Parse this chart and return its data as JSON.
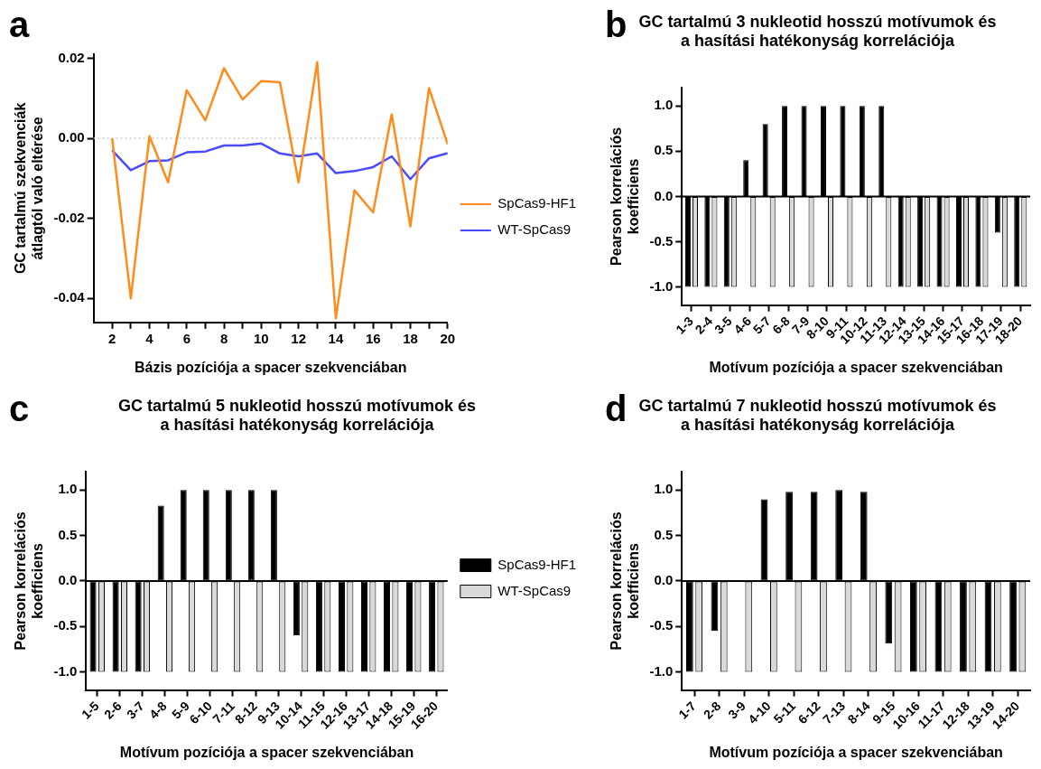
{
  "chart_data": [
    {
      "type": "line",
      "annotations": [
        "a"
      ],
      "xlabel": "Bázis pozíciója a spacer szekvenciában",
      "ylabel": "GC tartalmú szekvenciák átlagtól való eltérése",
      "x": [
        2,
        3,
        4,
        5,
        6,
        7,
        8,
        9,
        10,
        11,
        12,
        13,
        14,
        15,
        16,
        17,
        18,
        19,
        20
      ],
      "series": [
        {
          "name": "SpCas9-HF1",
          "color": "#ff8c1a",
          "values": [
            0.0,
            -0.04,
            0.0005,
            -0.011,
            0.012,
            0.0045,
            0.0175,
            0.0097,
            0.0143,
            0.014,
            -0.011,
            0.019,
            -0.045,
            -0.013,
            -0.0185,
            0.006,
            -0.022,
            0.0125,
            -0.0015
          ]
        },
        {
          "name": "WT-SpCas9",
          "color": "#4a4aff",
          "values": [
            -0.003,
            -0.008,
            -0.0057,
            -0.0055,
            -0.0035,
            -0.0033,
            -0.0018,
            -0.0018,
            -0.0013,
            -0.0038,
            -0.0045,
            -0.0038,
            -0.0087,
            -0.0082,
            -0.0072,
            -0.0045,
            -0.0102,
            -0.005,
            -0.0037
          ]
        }
      ],
      "xlim": [
        1,
        20
      ],
      "xticks": [
        2,
        {
          "value": 3,
          "label": null
        },
        4,
        {
          "value": 5,
          "label": null
        },
        6,
        {
          "value": 7,
          "label": null
        },
        8,
        {
          "value": 9,
          "label": null
        },
        10,
        {
          "value": 11,
          "label": null
        },
        12,
        {
          "value": 13,
          "label": null
        },
        14,
        {
          "value": 15,
          "label": null
        },
        16,
        {
          "value": 17,
          "label": null
        },
        18,
        {
          "value": 19,
          "label": null
        },
        20
      ],
      "ylim": [
        -0.046,
        0.021
      ],
      "yticks": [
        {
          "value": -0.04,
          "label": "-0.04"
        },
        {
          "value": -0.02,
          "label": "-0.02"
        },
        {
          "value": 0,
          "label": "0.00"
        },
        {
          "value": 0.02,
          "label": "0.02"
        }
      ],
      "ref_lines": [
        {
          "axis": "y",
          "value": 0,
          "color": "#cccccc",
          "line_style": "dotted"
        }
      ],
      "marker": "none",
      "legend": "right"
    },
    {
      "type": "bar",
      "annotations": [
        "b"
      ],
      "title": "GC tartalmú 3 nukleotid hosszú motívumok és a hasítási hatékonyság korrelációja",
      "xlabel": "Motívum pozíciója a spacer szekvenciában",
      "ylabel": "Pearson korrelációs koefficiens",
      "categories": [
        "1-3",
        "2-4",
        "3-5",
        "4-6",
        "5-7",
        "6-8",
        "7-9",
        "8-10",
        "9-11",
        "10-12",
        "11-13",
        "12-14",
        "13-15",
        "14-16",
        "15-17",
        "16-18",
        "17-19",
        "18-20"
      ],
      "series": [
        {
          "color": "#000000",
          "values": [
            -1,
            -1,
            -1,
            0.4,
            0.8,
            1,
            1,
            1,
            1,
            1,
            1,
            -1,
            -1,
            -1,
            -1,
            -1,
            -0.4,
            -1
          ]
        },
        {
          "color": "#d9d9d9",
          "values": [
            -1,
            -1,
            -1,
            -1,
            -1,
            -1,
            -1,
            -1,
            -1,
            -1,
            -1,
            -1,
            -1,
            -1,
            -1,
            -1,
            -1,
            -1
          ]
        }
      ],
      "ylim": [
        -1.2,
        1.2
      ],
      "yticks": [
        {
          "value": -1,
          "label": "-1.0"
        },
        {
          "value": -0.5,
          "label": "-0.5"
        },
        {
          "value": 0,
          "label": "0.0"
        },
        {
          "value": 0.5,
          "label": "0.5"
        },
        {
          "value": 1,
          "label": "1.0"
        }
      ],
      "ref_lines": [
        {
          "axis": "y",
          "value": 0,
          "color": "#000000",
          "line_style": "solid"
        }
      ]
    },
    {
      "type": "bar",
      "annotations": [
        "c"
      ],
      "title": "GC tartalmú 5 nukleotid hosszú motívumok és a hasítási hatékonyság korrelációja",
      "xlabel": "Motívum pozíciója a spacer szekvenciában",
      "ylabel": "Pearson korrelációs koefficiens",
      "categories": [
        "1-5",
        "2-6",
        "3-7",
        "4-8",
        "5-9",
        "6-10",
        "7-11",
        "8-12",
        "9-13",
        "10-14",
        "11-15",
        "12-16",
        "13-17",
        "14-18",
        "15-19",
        "16-20"
      ],
      "series": [
        {
          "name": "SpCas9-HF1",
          "color": "#000000",
          "values": [
            -1,
            -1,
            -1,
            0.83,
            1,
            1,
            1,
            1,
            1,
            -0.6,
            -1,
            -1,
            -1,
            -1,
            -1,
            -1
          ]
        },
        {
          "name": "WT-SpCas9",
          "color": "#d9d9d9",
          "values": [
            -1,
            -1,
            -1,
            -1,
            -1,
            -1,
            -1,
            -1,
            -1,
            -1,
            -1,
            -1,
            -1,
            -1,
            -1,
            -1
          ]
        }
      ],
      "ylim": [
        -1.2,
        1.2
      ],
      "yticks": [
        {
          "value": -1,
          "label": "-1.0"
        },
        {
          "value": -0.5,
          "label": "-0.5"
        },
        {
          "value": 0,
          "label": "0.0"
        },
        {
          "value": 0.5,
          "label": "0.5"
        },
        {
          "value": 1,
          "label": "1.0"
        }
      ],
      "ref_lines": [
        {
          "axis": "y",
          "value": 0,
          "color": "#000000",
          "line_style": "solid"
        }
      ],
      "legend": "right"
    },
    {
      "type": "bar",
      "annotations": [
        "d"
      ],
      "title": "GC tartalmú 7 nukleotid hosszú motívumok és a hasítási hatékonyság korrelációja",
      "xlabel": "Motívum pozíciója a spacer szekvenciában",
      "ylabel": "Pearson korrelációs koefficiens",
      "categories": [
        "1-7",
        "2-8",
        "3-9",
        "4-10",
        "5-11",
        "6-12",
        "7-13",
        "8-14",
        "9-15",
        "10-16",
        "11-17",
        "12-18",
        "13-19",
        "14-20"
      ],
      "series": [
        {
          "color": "#000000",
          "values": [
            -1,
            -0.55,
            0.01,
            0.9,
            0.98,
            0.98,
            1,
            0.98,
            -0.69,
            -1,
            -1,
            -1,
            -1,
            -1
          ]
        },
        {
          "color": "#d9d9d9",
          "values": [
            -1,
            -1,
            -1,
            -1,
            -1,
            -1,
            -1,
            -1,
            -1,
            -1,
            -1,
            -1,
            -1,
            -1
          ]
        }
      ],
      "ylim": [
        -1.2,
        1.2
      ],
      "yticks": [
        {
          "value": -1,
          "label": "-1.0"
        },
        {
          "value": -0.5,
          "label": "-0.5"
        },
        {
          "value": 0,
          "label": "0.0"
        },
        {
          "value": 0.5,
          "label": "0.5"
        },
        {
          "value": 1,
          "label": "1.0"
        }
      ],
      "ref_lines": [
        {
          "axis": "y",
          "value": 0,
          "color": "#000000",
          "line_style": "solid"
        }
      ]
    }
  ]
}
